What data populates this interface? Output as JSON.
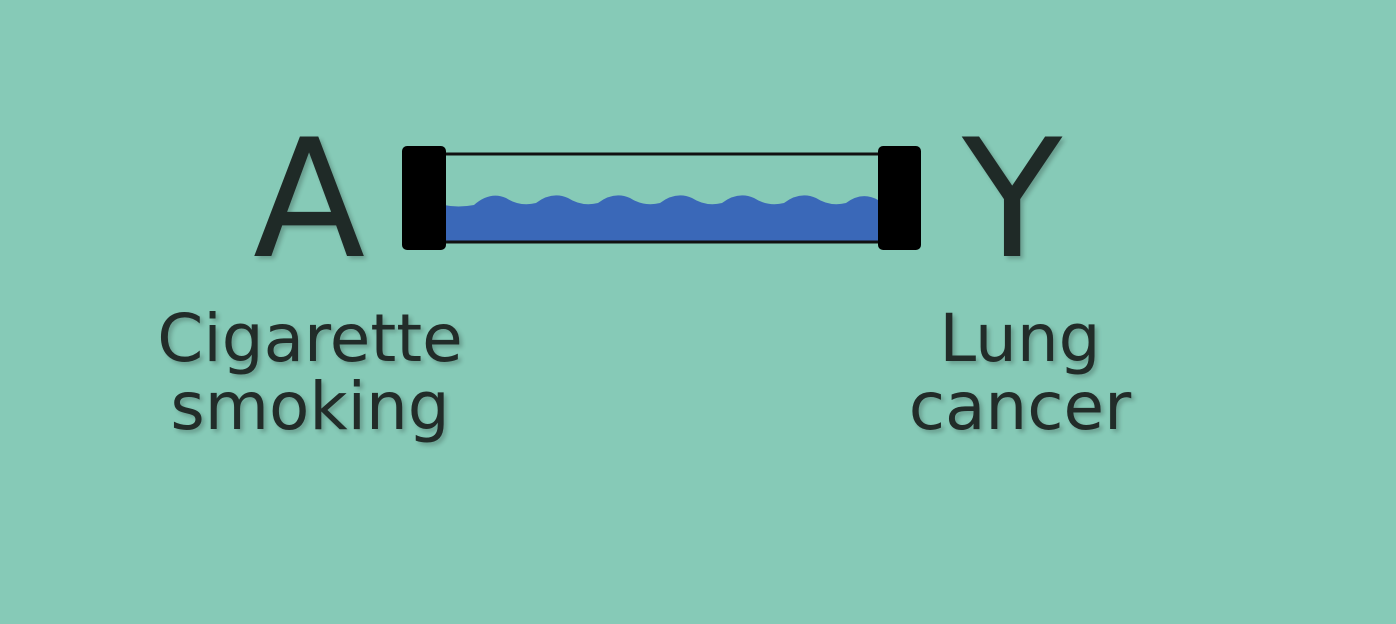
{
  "nodes": {
    "exposure": {
      "letter": "A",
      "caption_line1": "Cigarette",
      "caption_line2": "smoking"
    },
    "outcome": {
      "letter": "Y",
      "caption_line1": "Lung",
      "caption_line2": "cancer"
    }
  },
  "colors": {
    "background": "#86cab7",
    "water": "#3a68b8",
    "pipe_cap": "#000000",
    "text": "#1f2a27"
  },
  "icons": {
    "connector": "water-filled-pipe-icon"
  }
}
